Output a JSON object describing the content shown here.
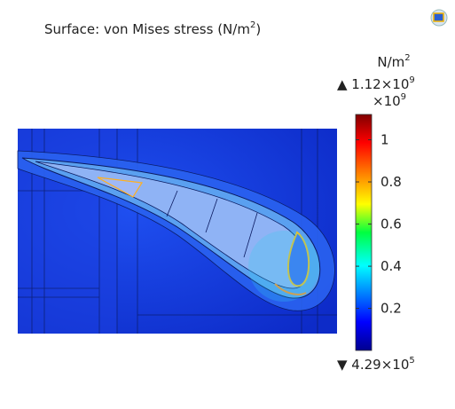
{
  "title": {
    "text": "Surface: von Mises stress (N/m",
    "sup": "2",
    "end": ")"
  },
  "colorbar": {
    "unit": {
      "text": "N/m",
      "sup": "2"
    },
    "max": {
      "text": "▲ 1.12×10",
      "sup": "9"
    },
    "factor": {
      "text": "×10",
      "sup": "9"
    },
    "min": {
      "text": "▼ 4.29×10",
      "sup": "5"
    },
    "lim": [
      0.000429,
      1.12
    ],
    "ticks": [
      0.2,
      0.4,
      0.6,
      0.8,
      1
    ]
  }
}
